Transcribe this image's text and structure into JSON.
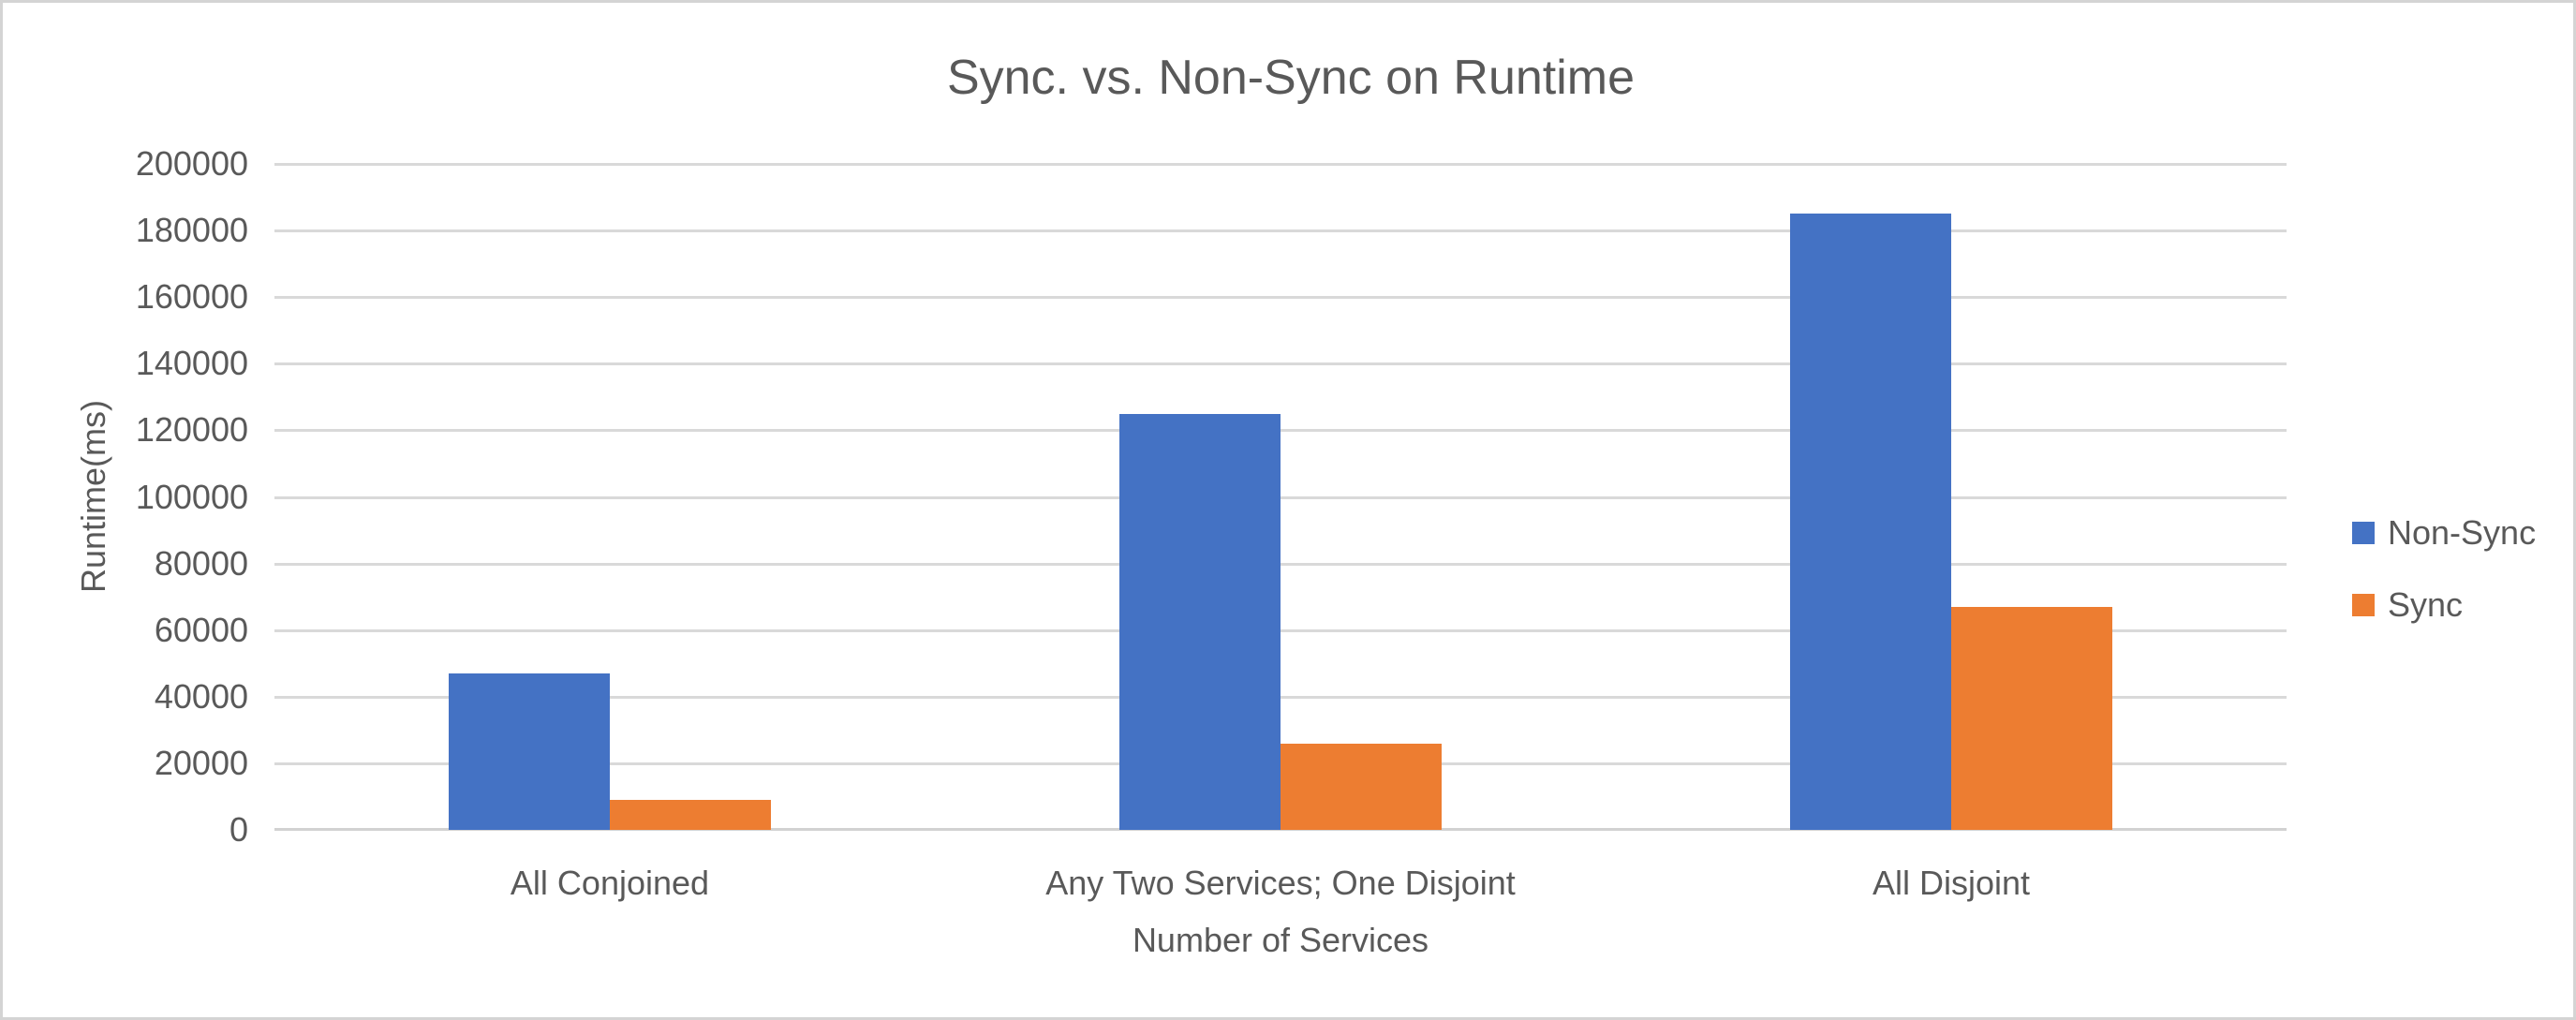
{
  "frame": {
    "background": "#ffffff",
    "border_color": "#d4d4d4"
  },
  "chart_data": {
    "type": "bar",
    "title": "Sync. vs. Non-Sync on Runtime",
    "xlabel": "Number of Services",
    "ylabel": "Runtime(ms)",
    "categories": [
      "All Conjoined",
      "Any Two Services; One Disjoint",
      "All Disjoint"
    ],
    "series": [
      {
        "name": "Non-Sync",
        "color": "#4472C4",
        "values": [
          47000,
          125000,
          185000
        ]
      },
      {
        "name": "Sync",
        "color": "#ED7D31",
        "values": [
          9000,
          26000,
          67000
        ]
      }
    ],
    "ylim": [
      0,
      200000
    ],
    "ytick_step": 20000,
    "ytick_labels": [
      "0",
      "20000",
      "40000",
      "60000",
      "80000",
      "100000",
      "120000",
      "140000",
      "160000",
      "180000",
      "200000"
    ],
    "grid": true,
    "gridline_color": "#d9d9d9",
    "axis_line_color": "#d2d2d2",
    "text_color": "#595959",
    "legend_position": "right"
  }
}
